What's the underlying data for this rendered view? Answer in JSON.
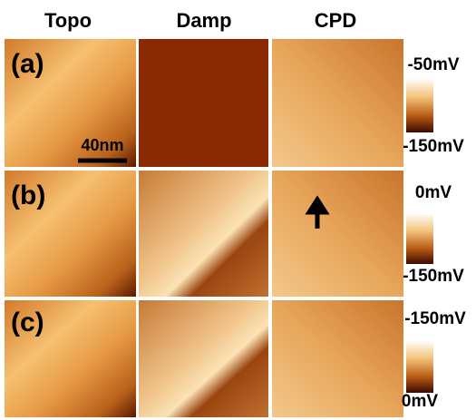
{
  "columns": [
    "Topo",
    "Damp",
    "CPD"
  ],
  "rows": [
    {
      "label": "(a)",
      "colorbar": {
        "top": "-50mV",
        "bottom": "-150mV"
      }
    },
    {
      "label": "(b)",
      "colorbar": {
        "top": "0mV",
        "bottom": "-150mV"
      }
    },
    {
      "label": "(c)",
      "colorbar": {
        "top": "-150mV",
        "bottom": "0mV"
      }
    }
  ],
  "scale_bar": "40nm"
}
